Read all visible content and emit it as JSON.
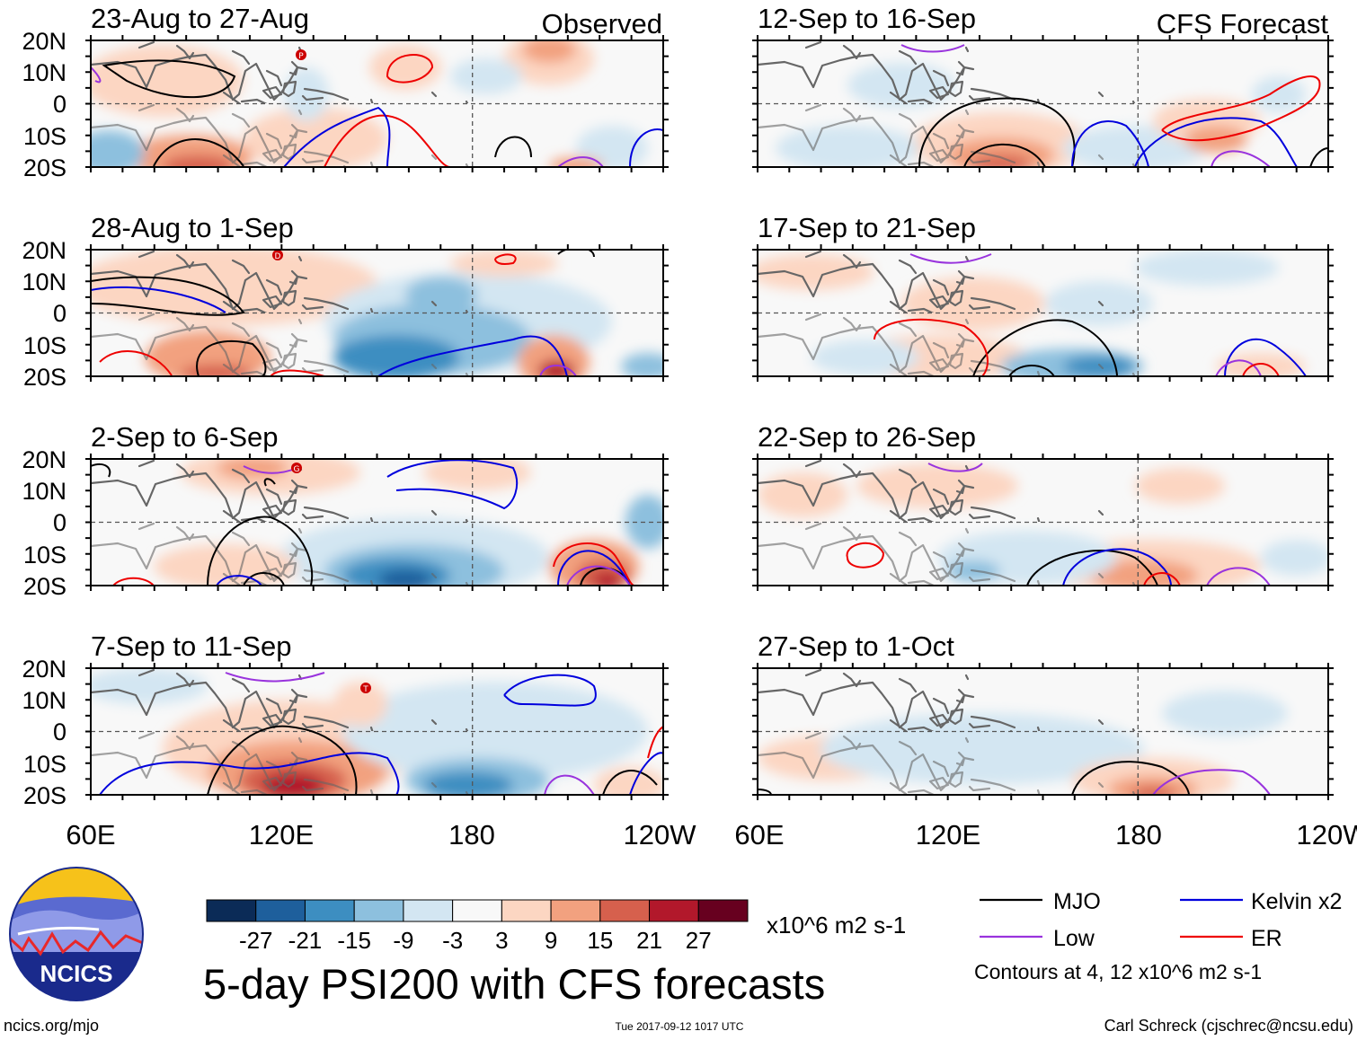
{
  "title": "5-day PSI200 with CFS forecasts",
  "column_labels": {
    "left": "Observed",
    "right": "CFS Forecast"
  },
  "panels": [
    {
      "label": "23-Aug to 27-Aug",
      "source": "Observed"
    },
    {
      "label": "28-Aug to 1-Sep",
      "source": "Observed"
    },
    {
      "label": "2-Sep to 6-Sep",
      "source": "Observed"
    },
    {
      "label": "7-Sep to 11-Sep",
      "source": "Observed"
    },
    {
      "label": "12-Sep to 16-Sep",
      "source": "CFS Forecast"
    },
    {
      "label": "17-Sep to 21-Sep",
      "source": "CFS Forecast"
    },
    {
      "label": "22-Sep to 26-Sep",
      "source": "CFS Forecast"
    },
    {
      "label": "27-Sep to 1-Oct",
      "source": "CFS Forecast"
    }
  ],
  "lat_labels": [
    "20N",
    "10N",
    "0",
    "10S",
    "20S"
  ],
  "lon_labels": [
    "60E",
    "120E",
    "180",
    "120W"
  ],
  "colorbar": {
    "ticks": [
      "-27",
      "-21",
      "-15",
      "-9",
      "-3",
      "3",
      "9",
      "15",
      "21",
      "27"
    ],
    "colors": [
      "#0b2b57",
      "#1e5f9c",
      "#3d8ec1",
      "#8dc0de",
      "#d3e6f2",
      "#f8f8f8",
      "#fcd6c2",
      "#f2a17f",
      "#d6604d",
      "#b2182b",
      "#67001f"
    ],
    "units": "x10^6 m2 s-1"
  },
  "legend": {
    "items": [
      {
        "label": "MJO",
        "color": "#000000"
      },
      {
        "label": "Kelvin x2",
        "color": "#0000dd"
      },
      {
        "label": "Low",
        "color": "#9933dd"
      },
      {
        "label": "ER",
        "color": "#ee0000"
      }
    ],
    "note": "Contours at 4, 12 x10^6 m2 s-1"
  },
  "storm_markers": [
    "P",
    "D",
    "G",
    "T"
  ],
  "logo_text": "NCICS",
  "footer": {
    "url": "ncics.org/mjo",
    "timestamp": "Tue 2017-09-12 1017 UTC",
    "credit": "Carl Schreck (cjschrec@ncsu.edu)"
  }
}
